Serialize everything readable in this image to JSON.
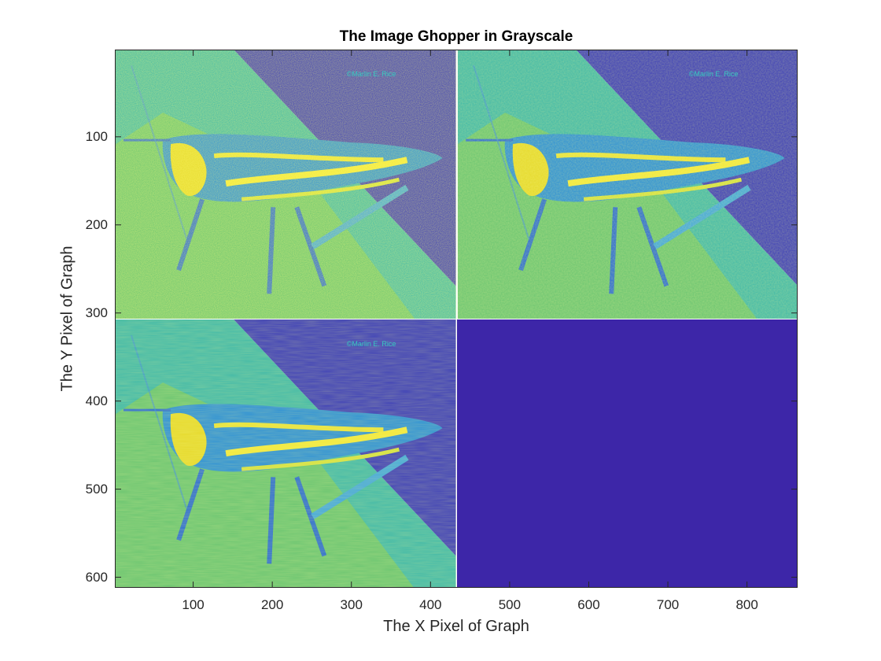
{
  "chart_data": {
    "type": "heatmap",
    "title": "The Image Ghopper in Grayscale",
    "xlabel": "The X Pixel of Graph",
    "ylabel": "The Y Pixel of Graph",
    "xlim": [
      1,
      864
    ],
    "ylim": [
      1,
      612
    ],
    "y_reversed": true,
    "colormap": "parula",
    "xticks": [
      100,
      200,
      300,
      400,
      500,
      600,
      700,
      800
    ],
    "yticks": [
      100,
      200,
      300,
      400,
      500,
      600
    ],
    "tiles": [
      {
        "name": "top-left-image",
        "x": [
          1,
          432
        ],
        "y": [
          1,
          306
        ],
        "content": "grasshopper",
        "sharpness": "high"
      },
      {
        "name": "top-right-image",
        "x": [
          433,
          864
        ],
        "y": [
          1,
          306
        ],
        "content": "grasshopper",
        "sharpness": "medium"
      },
      {
        "name": "bottom-left-image",
        "x": [
          1,
          432
        ],
        "y": [
          307,
          612
        ],
        "content": "grasshopper",
        "sharpness": "low"
      },
      {
        "name": "bottom-right-empty",
        "x": [
          433,
          864
        ],
        "y": [
          307,
          612
        ],
        "content": "uniform",
        "color": "#3d26a8"
      }
    ],
    "watermark_text": "©Marlin E. Rice",
    "colors": {
      "low": "#3d26a8",
      "mid": "#2ab0d9",
      "high": "#f9fb0e"
    }
  }
}
